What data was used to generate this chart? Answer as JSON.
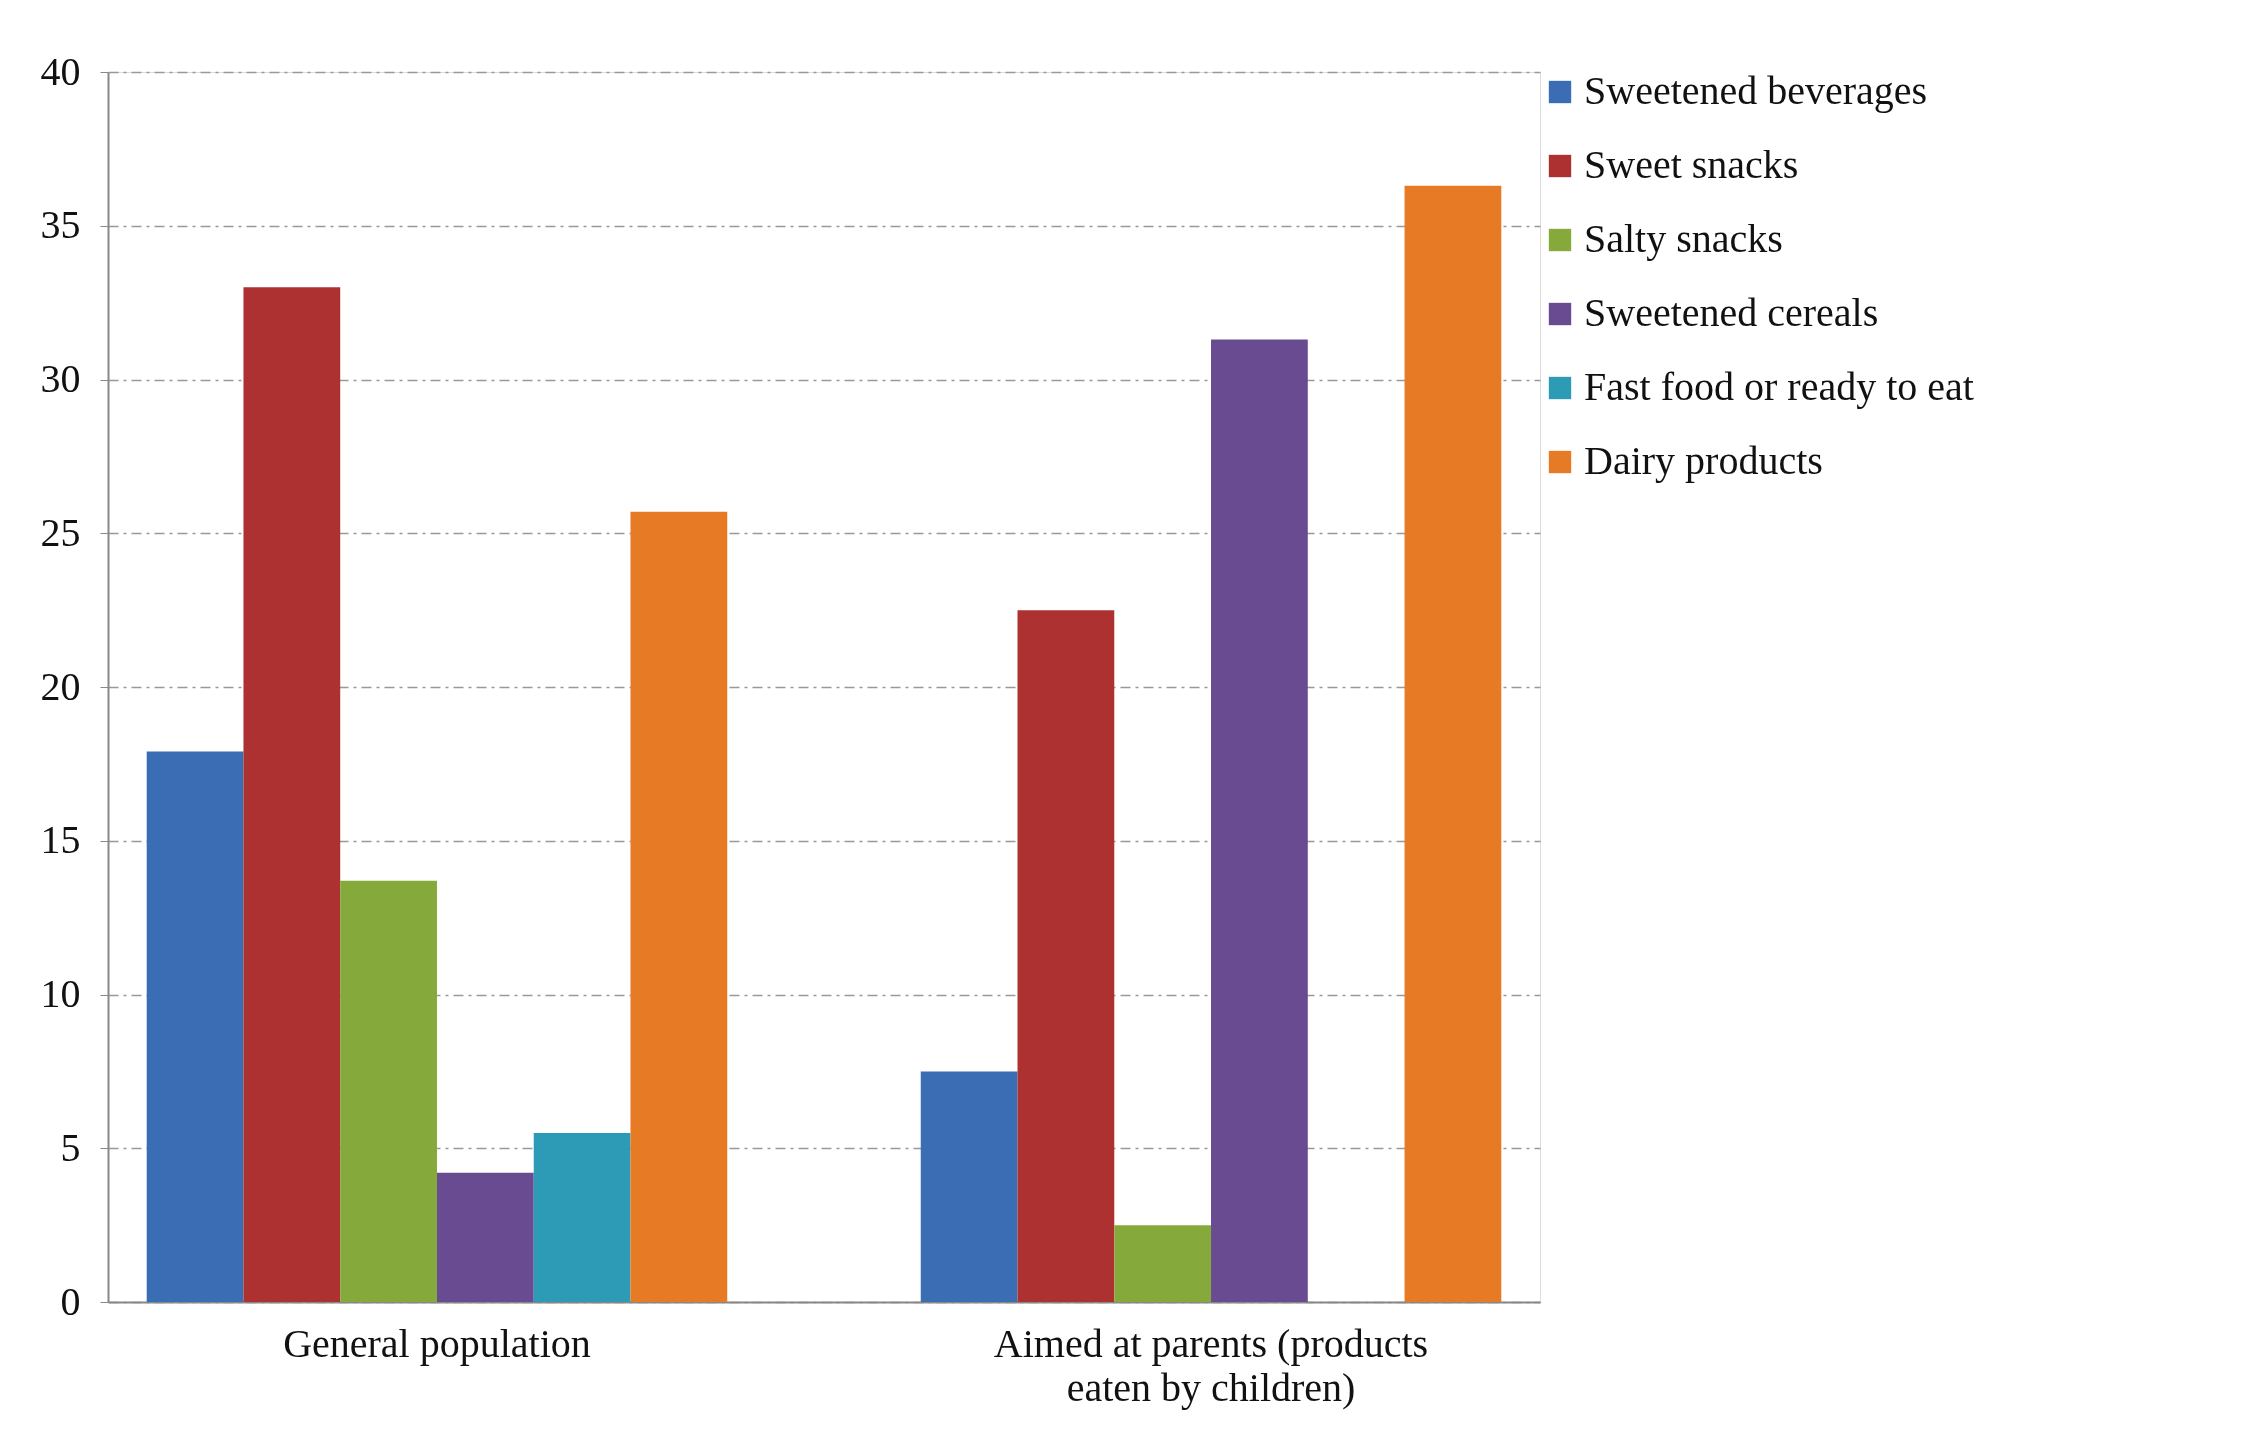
{
  "chart_data": {
    "type": "bar",
    "categories": [
      "General population",
      "Aimed at parents (products eaten by children)"
    ],
    "series": [
      {
        "name": "Sweetened beverages",
        "color": "#3a6db3",
        "values": [
          17.9,
          7.5
        ]
      },
      {
        "name": "Sweet snacks",
        "color": "#ad3130",
        "values": [
          33.0,
          22.5
        ]
      },
      {
        "name": "Salty snacks",
        "color": "#86a93c",
        "values": [
          13.7,
          2.5
        ]
      },
      {
        "name": "Sweetened cereals",
        "color": "#684b91",
        "values": [
          4.2,
          31.3
        ]
      },
      {
        "name": "Fast food or ready to eat",
        "color": "#2d9bb6",
        "values": [
          5.5,
          null
        ]
      },
      {
        "name": "Dairy products",
        "color": "#e77b25",
        "values": [
          25.7,
          36.3
        ]
      }
    ],
    "ylim": [
      0,
      40
    ],
    "yticks": [
      0,
      5,
      10,
      15,
      20,
      25,
      30,
      35,
      40
    ],
    "grid": "y",
    "legend": "right"
  }
}
